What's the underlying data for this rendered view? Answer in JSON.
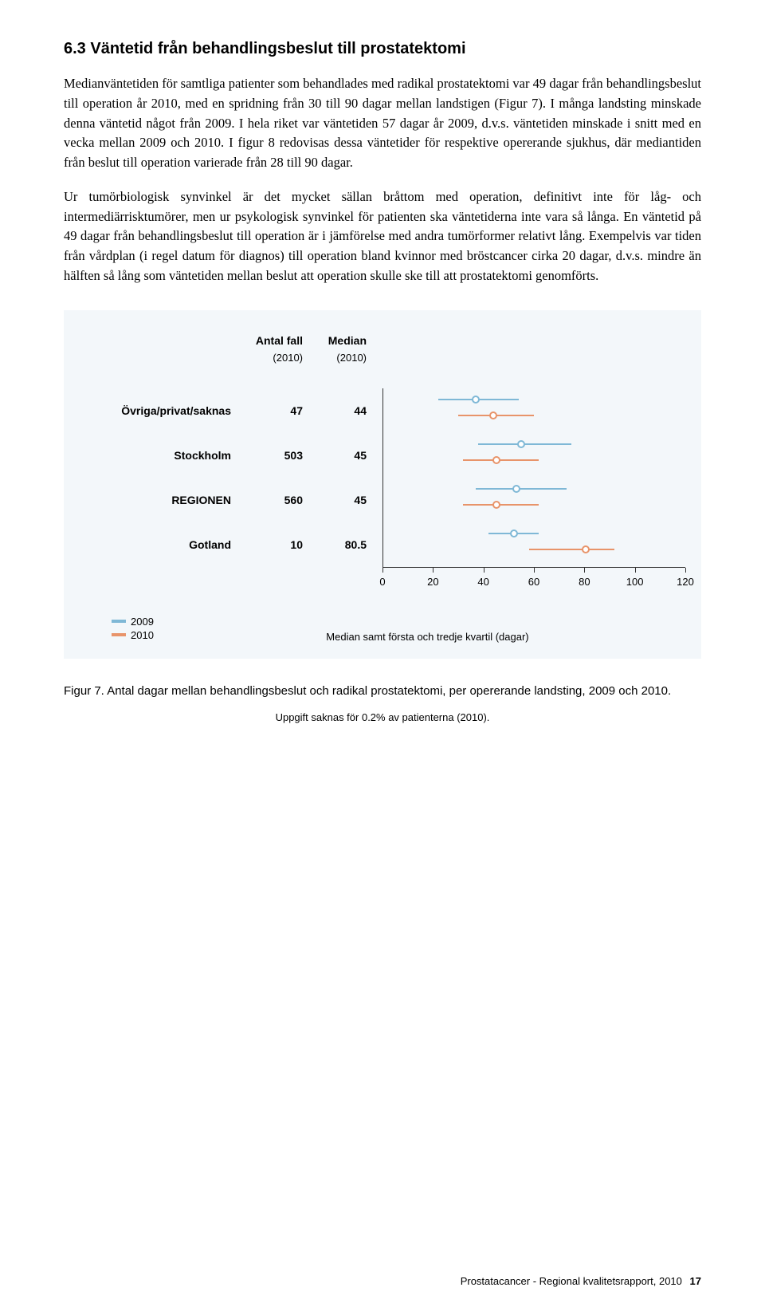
{
  "heading": "6.3  Väntetid från behandlingsbeslut till prostatektomi",
  "para1": "Medianväntetiden för samtliga patienter som behandlades med radikal prostatektomi var 49 dagar från behandlingsbeslut till operation år 2010, med en spridning från 30 till 90 dagar mellan landstigen (Figur 7). I många landsting minskade denna väntetid något från 2009. I hela riket var väntetiden 57 dagar år 2009, d.v.s. väntetiden minskade i snitt med en vecka mellan 2009 och 2010. I figur 8 redovisas dessa väntetider för respektive opererande sjukhus, där mediantiden från beslut till operation varierade från 28 till 90 dagar.",
  "para2": "Ur tumörbiologisk synvinkel är det mycket sällan bråttom med operation, definitivt inte för låg- och intermediärrisktumörer, men ur psykologisk synvinkel för patienten ska väntetiderna inte vara så långa. En väntetid på 49 dagar från behandlingsbeslut till operation är i jämförelse med andra tumörformer relativt lång. Exempelvis var tiden från vårdplan (i regel datum för diagnos) till operation bland kvinnor med bröstcancer cirka 20 dagar, d.v.s. mindre än hälften så lång som väntetiden mellan beslut att operation skulle ske till att prostatektomi genomförts.",
  "chart": {
    "header_antal": "Antal fall",
    "header_median": "Median",
    "header_year": "(2010)",
    "xmin": 0,
    "xmax": 120,
    "xticks": [
      0,
      20,
      40,
      60,
      80,
      100,
      120
    ],
    "color_2009": "#7fb8d6",
    "color_2010": "#e8946a",
    "rows": [
      {
        "label": "Övriga/privat/saknas",
        "antal": "47",
        "median": "44",
        "s2009": {
          "q1": 22,
          "med": 37,
          "q3": 54
        },
        "s2010": {
          "q1": 30,
          "med": 44,
          "q3": 60
        }
      },
      {
        "label": "Stockholm",
        "antal": "503",
        "median": "45",
        "s2009": {
          "q1": 38,
          "med": 55,
          "q3": 75
        },
        "s2010": {
          "q1": 32,
          "med": 45,
          "q3": 62
        }
      },
      {
        "label": "REGIONEN",
        "antal": "560",
        "median": "45",
        "s2009": {
          "q1": 37,
          "med": 53,
          "q3": 73
        },
        "s2010": {
          "q1": 32,
          "med": 45,
          "q3": 62
        }
      },
      {
        "label": "Gotland",
        "antal": "10",
        "median": "80.5",
        "s2009": {
          "q1": 42,
          "med": 52,
          "q3": 62
        },
        "s2010": {
          "q1": 58,
          "med": 80.5,
          "q3": 92
        }
      }
    ],
    "legend": [
      {
        "label": "2009",
        "colorKey": "color_2009"
      },
      {
        "label": "2010",
        "colorKey": "color_2010"
      }
    ],
    "axis_caption": "Median samt första och tredje kvartil (dagar)"
  },
  "figure_caption": "Figur 7. Antal dagar mellan behandlingsbeslut och radikal prostatektomi, per opererande landsting, 2009 och 2010.",
  "figure_subnote": "Uppgift saknas för 0.2% av patienterna (2010).",
  "footer_text": "Prostatacancer - Regional kvalitetsrapport, 2010",
  "footer_page": "17"
}
